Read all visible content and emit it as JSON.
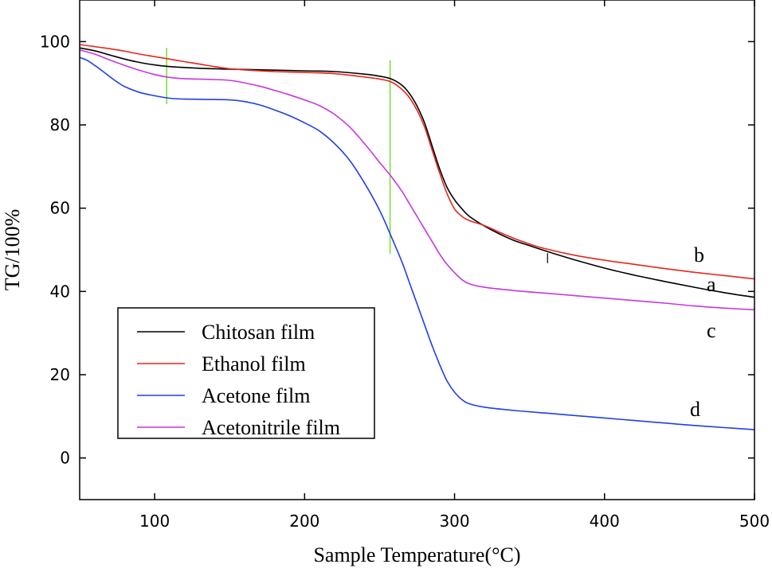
{
  "chart_data": {
    "type": "line",
    "xlabel": "Sample Temperature(°C)",
    "ylabel": "TG/100%",
    "xlim": [
      50,
      500
    ],
    "ylim": [
      -10,
      110
    ],
    "x_ticks": [
      100,
      200,
      300,
      400,
      500
    ],
    "y_ticks": [
      0,
      20,
      40,
      60,
      80,
      100
    ],
    "grid": false,
    "legend_position": "bottom-left",
    "series": [
      {
        "name": "Chitosan film",
        "color": "#000000",
        "end_label": "a",
        "points": [
          [
            50,
            98.5
          ],
          [
            60,
            97.8
          ],
          [
            70,
            96.8
          ],
          [
            80,
            95.8
          ],
          [
            90,
            95
          ],
          [
            100,
            94.4
          ],
          [
            110,
            94
          ],
          [
            130,
            93.6
          ],
          [
            150,
            93.4
          ],
          [
            200,
            93
          ],
          [
            220,
            92.8
          ],
          [
            240,
            92.2
          ],
          [
            250,
            91.7
          ],
          [
            258,
            91
          ],
          [
            265,
            89.5
          ],
          [
            270,
            87.5
          ],
          [
            275,
            84.5
          ],
          [
            280,
            80.5
          ],
          [
            285,
            75
          ],
          [
            290,
            69.5
          ],
          [
            295,
            65
          ],
          [
            300,
            62
          ],
          [
            305,
            59.8
          ],
          [
            310,
            58
          ],
          [
            320,
            55.7
          ],
          [
            330,
            53.8
          ],
          [
            340,
            52.2
          ],
          [
            350,
            51
          ],
          [
            360,
            49.8
          ],
          [
            380,
            47.6
          ],
          [
            400,
            45.6
          ],
          [
            420,
            43.9
          ],
          [
            440,
            42.4
          ],
          [
            460,
            41
          ],
          [
            480,
            39.7
          ],
          [
            500,
            38.6
          ]
        ]
      },
      {
        "name": "Ethanol film",
        "color": "#e8261c",
        "end_label": "b",
        "points": [
          [
            50,
            99.3
          ],
          [
            60,
            98.8
          ],
          [
            70,
            98.3
          ],
          [
            80,
            97.7
          ],
          [
            90,
            97
          ],
          [
            100,
            96.4
          ],
          [
            110,
            95.8
          ],
          [
            120,
            95.2
          ],
          [
            130,
            94.6
          ],
          [
            140,
            94
          ],
          [
            150,
            93.5
          ],
          [
            160,
            93.2
          ],
          [
            180,
            92.8
          ],
          [
            200,
            92.6
          ],
          [
            220,
            92.3
          ],
          [
            240,
            91.5
          ],
          [
            250,
            91
          ],
          [
            258,
            90.3
          ],
          [
            265,
            88.5
          ],
          [
            270,
            86.5
          ],
          [
            275,
            83.5
          ],
          [
            280,
            79.5
          ],
          [
            285,
            74
          ],
          [
            290,
            68.5
          ],
          [
            295,
            63.5
          ],
          [
            300,
            59.8
          ],
          [
            305,
            58
          ],
          [
            310,
            57
          ],
          [
            320,
            55.8
          ],
          [
            330,
            54.2
          ],
          [
            340,
            52.7
          ],
          [
            350,
            51.4
          ],
          [
            360,
            50.3
          ],
          [
            380,
            48.7
          ],
          [
            400,
            47.5
          ],
          [
            420,
            46.5
          ],
          [
            440,
            45.5
          ],
          [
            460,
            44.6
          ],
          [
            480,
            43.8
          ],
          [
            500,
            43
          ]
        ]
      },
      {
        "name": "Acetone film",
        "color": "#1f3fe8",
        "end_label": "d",
        "points": [
          [
            50,
            96.2
          ],
          [
            55,
            95.5
          ],
          [
            60,
            94.3
          ],
          [
            65,
            93
          ],
          [
            70,
            91.6
          ],
          [
            75,
            90.3
          ],
          [
            80,
            89.2
          ],
          [
            90,
            87.8
          ],
          [
            100,
            87
          ],
          [
            110,
            86.4
          ],
          [
            120,
            86.2
          ],
          [
            140,
            86.1
          ],
          [
            150,
            86
          ],
          [
            160,
            85.6
          ],
          [
            170,
            84.8
          ],
          [
            180,
            83.6
          ],
          [
            190,
            82.2
          ],
          [
            200,
            80.5
          ],
          [
            210,
            78.5
          ],
          [
            220,
            75.5
          ],
          [
            230,
            71.5
          ],
          [
            240,
            66
          ],
          [
            250,
            59.5
          ],
          [
            258,
            53
          ],
          [
            265,
            47
          ],
          [
            270,
            42
          ],
          [
            275,
            37
          ],
          [
            280,
            32
          ],
          [
            285,
            27
          ],
          [
            290,
            22.5
          ],
          [
            295,
            18.5
          ],
          [
            300,
            15.8
          ],
          [
            305,
            14
          ],
          [
            310,
            13
          ],
          [
            320,
            12.2
          ],
          [
            340,
            11.4
          ],
          [
            360,
            10.8
          ],
          [
            380,
            10.2
          ],
          [
            400,
            9.6
          ],
          [
            420,
            9
          ],
          [
            440,
            8.4
          ],
          [
            460,
            7.8
          ],
          [
            480,
            7.3
          ],
          [
            500,
            6.8
          ]
        ]
      },
      {
        "name": "Acetonitrile film",
        "color": "#c736e0",
        "end_label": "c",
        "points": [
          [
            50,
            98
          ],
          [
            60,
            97
          ],
          [
            70,
            95.6
          ],
          [
            80,
            94.3
          ],
          [
            90,
            93.1
          ],
          [
            100,
            92.1
          ],
          [
            110,
            91.4
          ],
          [
            120,
            91.1
          ],
          [
            140,
            90.9
          ],
          [
            150,
            90.7
          ],
          [
            160,
            90.1
          ],
          [
            170,
            89.3
          ],
          [
            180,
            88.3
          ],
          [
            190,
            87.2
          ],
          [
            200,
            86
          ],
          [
            210,
            84.6
          ],
          [
            220,
            82.5
          ],
          [
            230,
            79.5
          ],
          [
            240,
            75.5
          ],
          [
            250,
            71
          ],
          [
            258,
            67.5
          ],
          [
            265,
            64
          ],
          [
            270,
            61
          ],
          [
            275,
            58
          ],
          [
            280,
            55
          ],
          [
            285,
            52
          ],
          [
            290,
            49
          ],
          [
            295,
            46.5
          ],
          [
            300,
            44.5
          ],
          [
            305,
            42.8
          ],
          [
            310,
            41.8
          ],
          [
            320,
            41
          ],
          [
            340,
            40.2
          ],
          [
            360,
            39.6
          ],
          [
            380,
            39
          ],
          [
            400,
            38.4
          ],
          [
            420,
            37.8
          ],
          [
            440,
            37.2
          ],
          [
            460,
            36.5
          ],
          [
            480,
            36
          ],
          [
            500,
            35.6
          ]
        ]
      }
    ],
    "annotations": {
      "green_markers": [
        {
          "x": 108,
          "y_range": [
            85,
            98.5
          ],
          "color": "#7ee03a"
        },
        {
          "x": 257,
          "y_range": [
            49,
            95.5
          ],
          "color": "#7ee03a"
        }
      ],
      "small_tick": {
        "x": 362,
        "y_range": [
          46.8,
          49.2
        ],
        "color": "#000000"
      }
    }
  }
}
